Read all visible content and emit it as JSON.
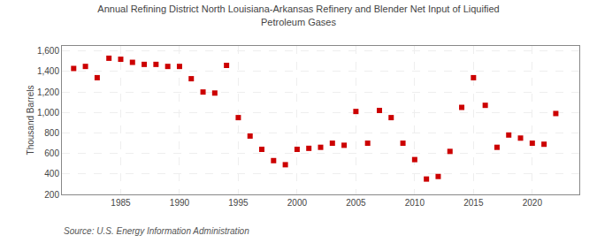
{
  "chart_data": {
    "type": "scatter",
    "title": "Annual Refining District North Louisiana-Arkansas Refinery and Blender Net Input of Liquified\nPetroleum Gases",
    "ylabel": "Thousand Barrels",
    "annotations": [
      "Source: U.S. Energy Information Administration"
    ],
    "color": "#cc0000",
    "marker": "square",
    "grid": true,
    "x": [
      1981,
      1982,
      1983,
      1984,
      1985,
      1986,
      1987,
      1988,
      1989,
      1990,
      1991,
      1992,
      1993,
      1994,
      1995,
      1996,
      1997,
      1998,
      1999,
      2000,
      2001,
      2002,
      2003,
      2004,
      2005,
      2006,
      2007,
      2008,
      2009,
      2010,
      2011,
      2012,
      2013,
      2014,
      2015,
      2016,
      2017,
      2018,
      2019,
      2020,
      2021,
      2022
    ],
    "values": [
      1430,
      1450,
      1340,
      1530,
      1520,
      1490,
      1470,
      1470,
      1450,
      1450,
      1330,
      1200,
      1190,
      1460,
      950,
      770,
      640,
      530,
      490,
      640,
      650,
      660,
      700,
      680,
      1010,
      700,
      1020,
      950,
      700,
      540,
      350,
      375,
      620,
      1050,
      1340,
      1070,
      660,
      780,
      750,
      700,
      690,
      990
    ],
    "xlim": [
      1980,
      2024
    ],
    "xticks": [
      1985,
      1990,
      1995,
      2000,
      2005,
      2010,
      2015,
      2020
    ],
    "ylim": [
      200,
      1650
    ],
    "yticks": [
      200,
      400,
      600,
      800,
      {
        "value": 1000,
        "label": "1,000"
      },
      {
        "value": 1200,
        "label": "1,200"
      },
      {
        "value": 1400,
        "label": "1,400"
      },
      {
        "value": 1600,
        "label": "1,600"
      }
    ]
  }
}
